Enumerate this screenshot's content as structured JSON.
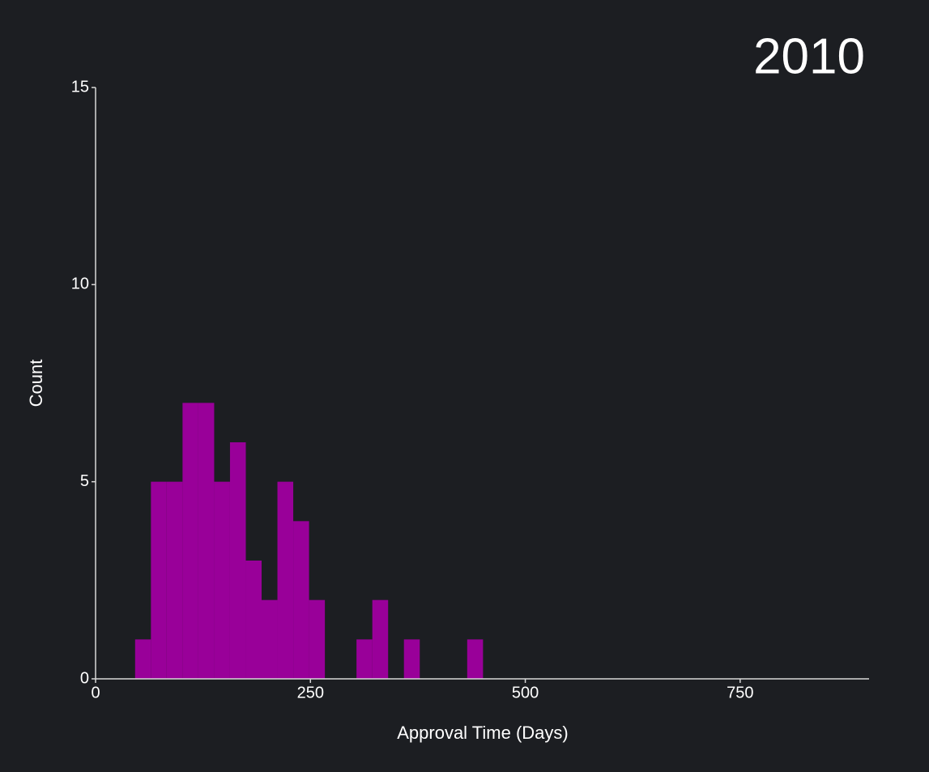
{
  "chart_data": {
    "type": "histogram",
    "title": "2010",
    "x_label": "Approval Time (Days)",
    "y_label": "Count",
    "bins": [
      46,
      64.4,
      82.8,
      101.2,
      119.6,
      138,
      156.4,
      174.8,
      193.2,
      211.6,
      230,
      248.4,
      266.8,
      285.2,
      303.6,
      322,
      340.4,
      358.8,
      377.2,
      395.6,
      414,
      432.4,
      450.8
    ],
    "values": [
      1,
      5,
      5,
      7,
      7,
      5,
      6,
      3,
      2,
      5,
      4,
      2,
      0,
      0,
      1,
      2,
      0,
      1,
      0,
      0,
      0,
      1
    ],
    "color": "#990099",
    "xlim": [
      0,
      900
    ],
    "xticks": [
      0,
      250,
      500,
      750
    ],
    "ylim": [
      0,
      15
    ],
    "yticks": [
      0,
      5,
      10,
      15
    ]
  }
}
